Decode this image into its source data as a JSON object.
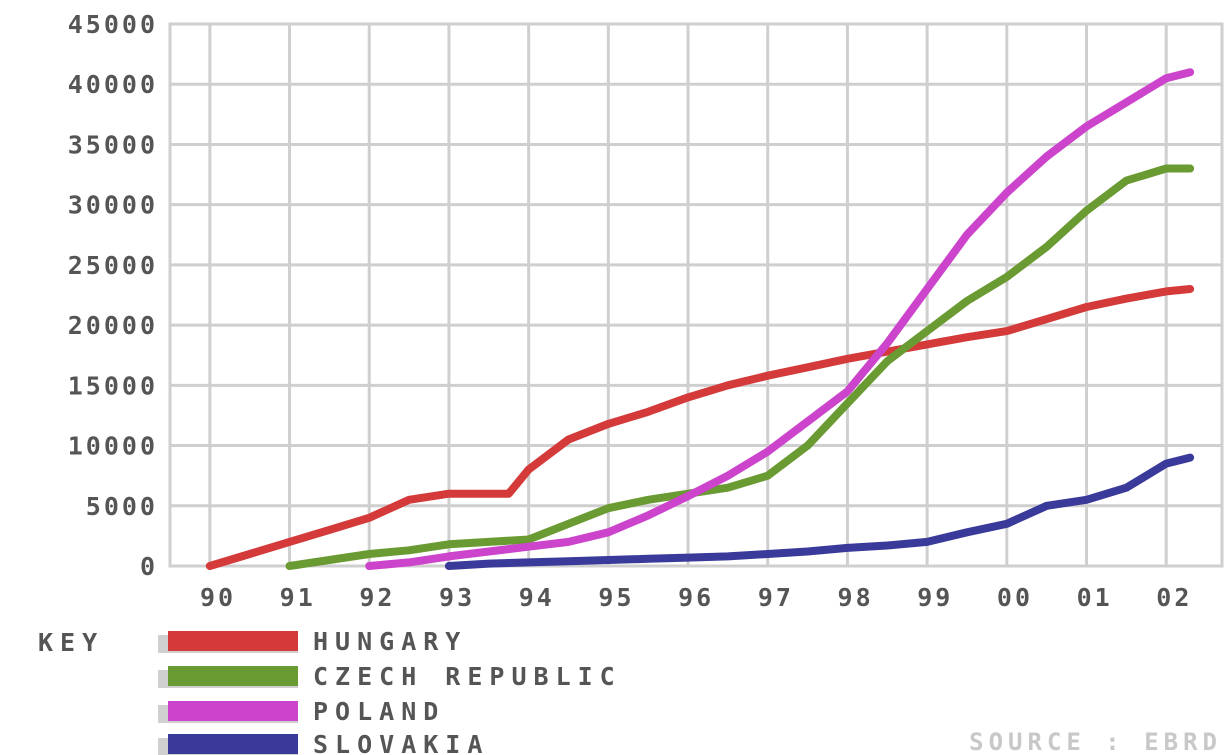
{
  "chart_data": {
    "type": "line",
    "y_ticks": [
      "45000",
      "40000",
      "35000",
      "30000",
      "25000",
      "20000",
      "15000",
      "10000",
      "5000",
      "0"
    ],
    "x_ticks": [
      "90",
      "91",
      "92",
      "93",
      "94",
      "95",
      "96",
      "97",
      "98",
      "99",
      "00",
      "01",
      "02"
    ],
    "ylim": [
      0,
      45000
    ],
    "xlim": [
      1989.5,
      2002.7
    ],
    "grid": true,
    "legend_placement": "bottom",
    "legend_title": "KEY",
    "source": "SOURCE : EBRD",
    "series": [
      {
        "name": "HUNGARY",
        "color": "#d43a3a",
        "x": [
          1990,
          1990.5,
          1991,
          1991.5,
          1992,
          1992.5,
          1993,
          1993.4,
          1993.75,
          1994,
          1994.5,
          1995,
          1995.5,
          1996,
          1996.5,
          1997,
          1997.5,
          1998,
          1998.5,
          1999,
          1999.5,
          2000,
          2000.5,
          2001,
          2001.5,
          2002,
          2002.3
        ],
        "values": [
          0,
          1000,
          2000,
          3000,
          4000,
          5500,
          6000,
          6000,
          6000,
          8000,
          10500,
          11800,
          12800,
          14000,
          15000,
          15800,
          16500,
          17200,
          17800,
          18400,
          19000,
          19500,
          20500,
          21500,
          22200,
          22800,
          23000
        ]
      },
      {
        "name": "CZECH REPUBLIC",
        "color": "#6a9a32",
        "x": [
          1991,
          1991.5,
          1992,
          1992.5,
          1993,
          1993.5,
          1994,
          1994.5,
          1995,
          1995.5,
          1996,
          1996.5,
          1997,
          1997.5,
          1998,
          1998.5,
          1999,
          1999.5,
          2000,
          2000.5,
          2001,
          2001.5,
          2002,
          2002.3
        ],
        "values": [
          0,
          500,
          1000,
          1300,
          1800,
          2000,
          2200,
          3500,
          4800,
          5500,
          6000,
          6500,
          7500,
          10000,
          13500,
          17000,
          19500,
          22000,
          24000,
          26500,
          29500,
          32000,
          33000,
          33000
        ]
      },
      {
        "name": "POLAND",
        "color": "#cc44cc",
        "x": [
          1992,
          1992.5,
          1993,
          1993.5,
          1994,
          1994.5,
          1995,
          1995.5,
          1996,
          1996.5,
          1997,
          1997.5,
          1998,
          1998.5,
          1999,
          1999.5,
          2000,
          2000.5,
          2001,
          2001.5,
          2002,
          2002.3
        ],
        "values": [
          0,
          300,
          800,
          1200,
          1600,
          2000,
          2800,
          4200,
          5800,
          7500,
          9500,
          12000,
          14500,
          18500,
          23000,
          27500,
          31000,
          34000,
          36500,
          38500,
          40500,
          41000
        ]
      },
      {
        "name": "SLOVAKIA",
        "color": "#3a3a9a",
        "x": [
          1993,
          1993.5,
          1994,
          1994.5,
          1995,
          1995.5,
          1996,
          1996.5,
          1997,
          1997.5,
          1998,
          1998.5,
          1999,
          1999.5,
          2000,
          2000.5,
          2001,
          2001.5,
          2002,
          2002.3
        ],
        "values": [
          0,
          200,
          300,
          400,
          500,
          600,
          700,
          800,
          1000,
          1200,
          1500,
          1700,
          2000,
          2800,
          3500,
          5000,
          5500,
          6500,
          8500,
          9000
        ]
      }
    ]
  }
}
